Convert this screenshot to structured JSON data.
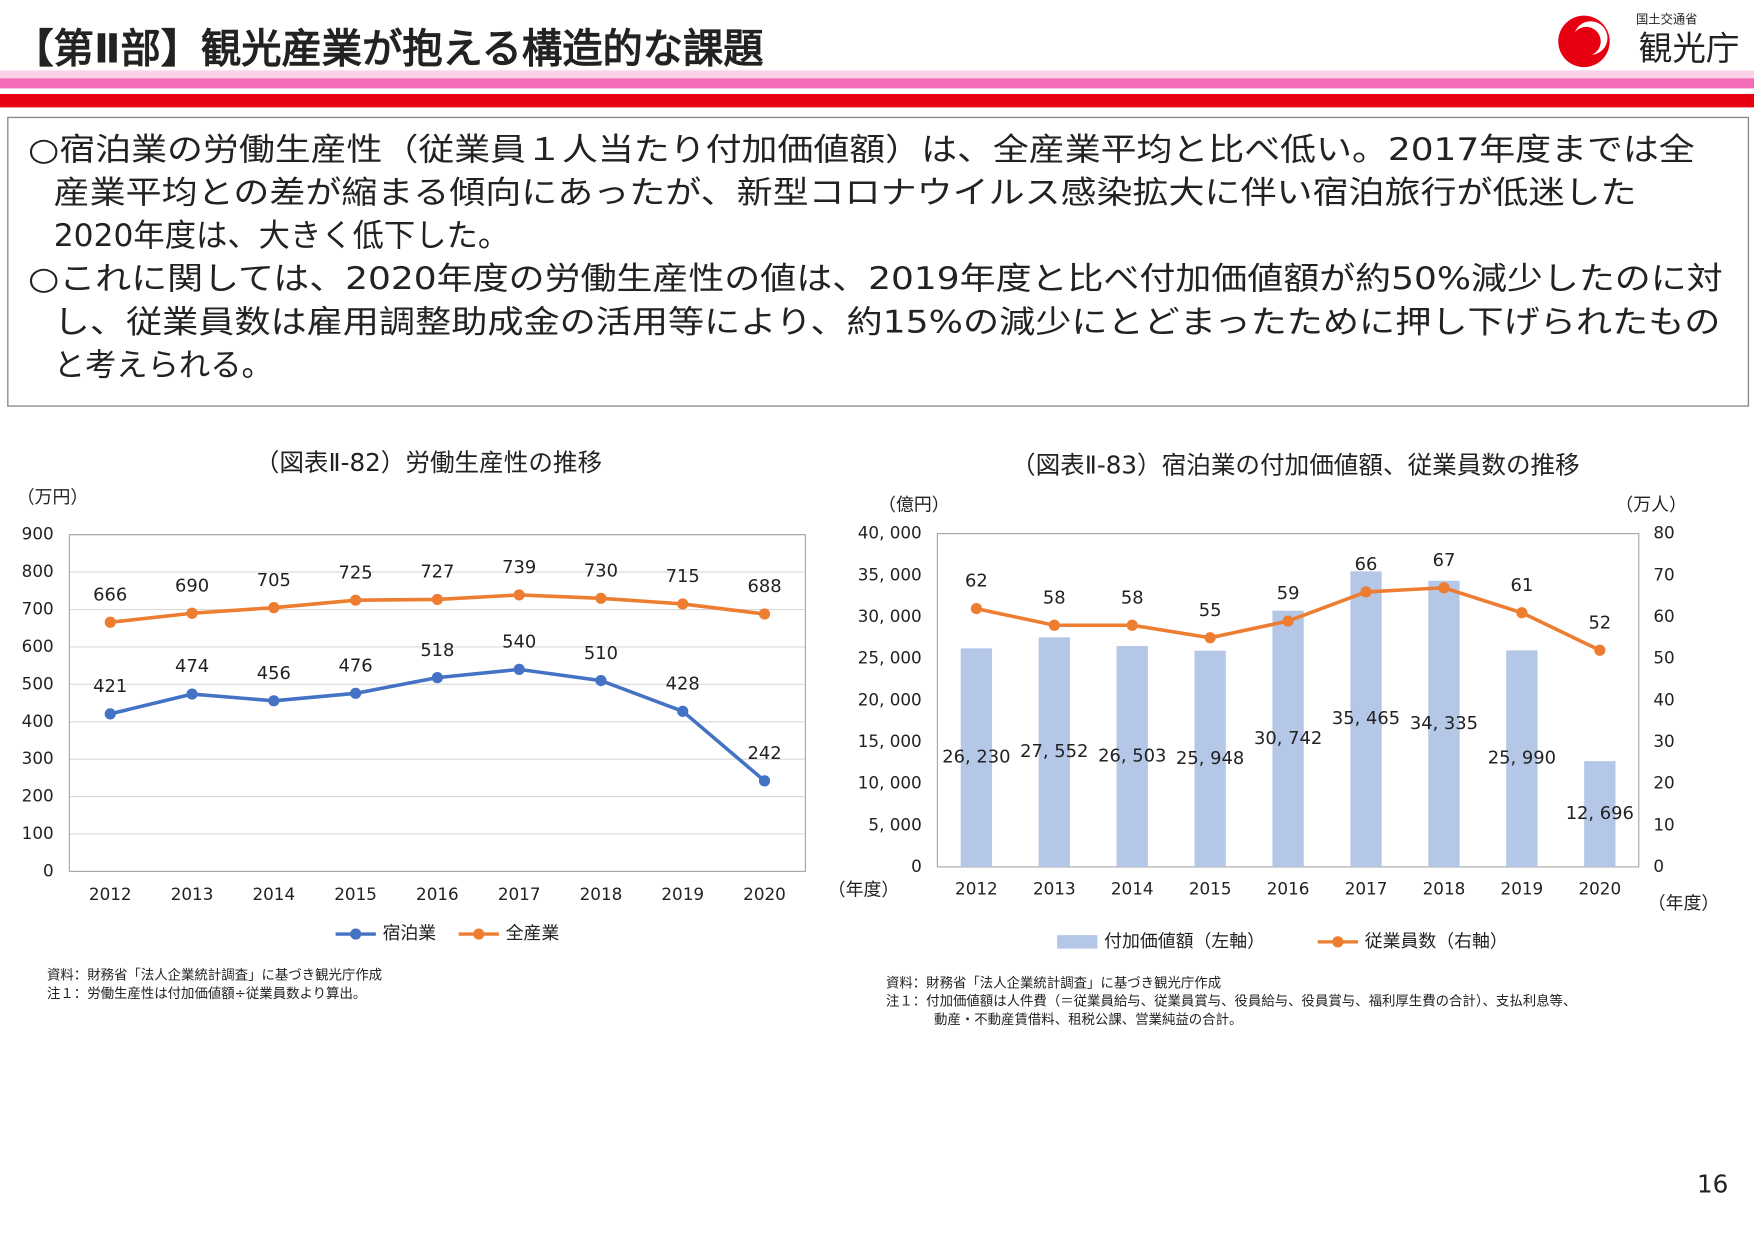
{
  "header": {
    "title": "【第Ⅱ部】観光産業が抱える構造的な課題",
    "ministry": "国土交通省",
    "agency": "観光庁"
  },
  "body": {
    "lines": [
      "○宿泊業の労働生産性（従業員１人当たり付加価値額）は、全産業平均と比べ低い。2017年度までは全",
      "産業平均との差が縮まる傾向にあったが、新型コロナウイルス感染拡大に伴い宿泊旅行が低迷した",
      "2020年度は、大きく低下した。",
      "○これに関しては、2020年度の労働生産性の値は、2019年度と比べ付加価値額が約50%減少したのに対",
      "し、従業員数は雇用調整助成金の活用等により、約15%の減少にとどまったために押し下げられたもの",
      "と考えられる。"
    ]
  },
  "page_number": 16,
  "chart_data": [
    {
      "type": "line",
      "title": "（図表Ⅱ-82）労働生産性の推移",
      "y_unit": "（万円）",
      "x_unit": "（年度）",
      "categories": [
        "2012",
        "2013",
        "2014",
        "2015",
        "2016",
        "2017",
        "2018",
        "2019",
        "2020"
      ],
      "series": [
        {
          "name": "宿泊業",
          "color": "#4472c4",
          "values": [
            421,
            474,
            456,
            476,
            518,
            540,
            510,
            428,
            242
          ]
        },
        {
          "name": "全産業",
          "color": "#ed7d31",
          "values": [
            666,
            690,
            705,
            725,
            727,
            739,
            730,
            715,
            688
          ]
        }
      ],
      "ylim": [
        0,
        900
      ],
      "yticks": [
        0,
        100,
        200,
        300,
        400,
        500,
        600,
        700,
        800,
        900
      ],
      "grid": true,
      "legend": "bottom",
      "notes": [
        "資料：財務省「法人企業統計調査」に基づき観光庁作成",
        "注１：労働生産性は付加価値額÷従業員数より算出。"
      ]
    },
    {
      "type": "bar",
      "title": "（図表Ⅱ-83）宿泊業の付加価値額、従業員数の推移",
      "y_unit": "（億円）",
      "y2_unit": "（万人）",
      "x_unit": "（年度）",
      "categories": [
        "2012",
        "2013",
        "2014",
        "2015",
        "2016",
        "2017",
        "2018",
        "2019",
        "2020"
      ],
      "series": [
        {
          "name": "付加価値額（左軸）",
          "type": "bar",
          "color": "#b4c7e7",
          "values": [
            26230,
            27552,
            26503,
            25948,
            30742,
            35465,
            34335,
            25990,
            12696
          ],
          "value_labels": [
            "26, 230",
            "27, 552",
            "26, 503",
            "25, 948",
            "30, 742",
            "35, 465",
            "34, 335",
            "25, 990",
            "12, 696"
          ]
        },
        {
          "name": "従業員数（右軸）",
          "type": "line",
          "axis": "y2",
          "color": "#ed7d31",
          "values": [
            62,
            58,
            58,
            55,
            59,
            66,
            67,
            61,
            52
          ]
        }
      ],
      "ylim": [
        0,
        40000
      ],
      "yticks": [
        0,
        {
          "value": 5000,
          "label": "5, 000"
        },
        {
          "value": 10000,
          "label": "10, 000"
        },
        {
          "value": 15000,
          "label": "15, 000"
        },
        {
          "value": 20000,
          "label": "20, 000"
        },
        {
          "value": 25000,
          "label": "25, 000"
        },
        {
          "value": 30000,
          "label": "30, 000"
        },
        {
          "value": 35000,
          "label": "35, 000"
        },
        {
          "value": 40000,
          "label": "40, 000"
        }
      ],
      "y2lim": [
        0,
        80
      ],
      "y2ticks": [
        0,
        10,
        20,
        30,
        40,
        50,
        60,
        70,
        80
      ],
      "grid": false,
      "legend": "bottom",
      "notes": [
        "資料：財務省「法人企業統計調査」に基づき観光庁作成",
        "注１：付加価値額は人件費（＝従業員給与、従業員賞与、役員給与、役員賞与、福利厚生費の合計）、支払利息等、",
        "動産・不動産賃借料、租税公課、営業純益の合計。"
      ]
    }
  ]
}
